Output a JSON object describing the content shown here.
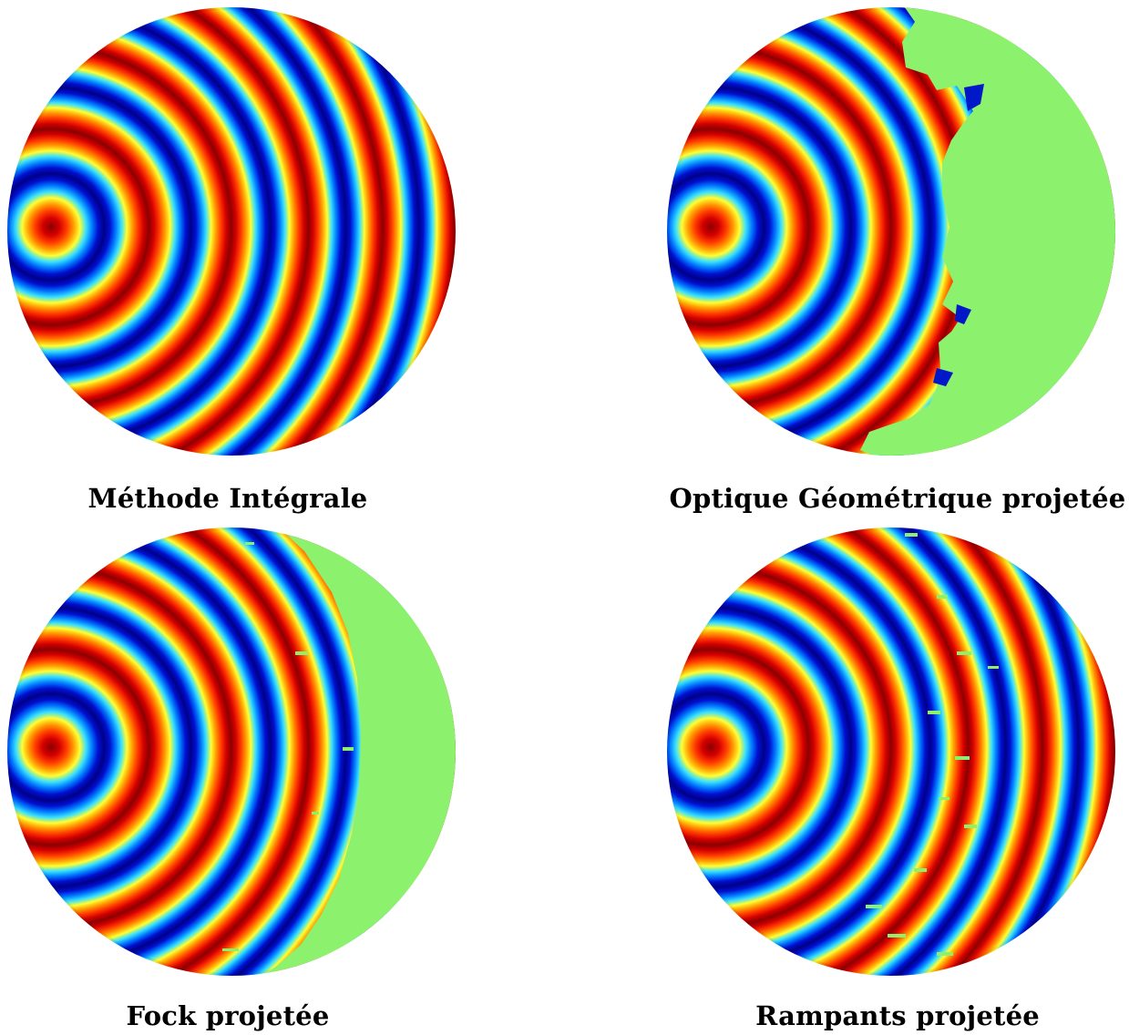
{
  "figure": {
    "panels": [
      {
        "id": "integral",
        "caption": "Méthode Intégrale",
        "green_cut": null,
        "noise": 0
      },
      {
        "id": "go",
        "caption": "Optique Géométrique projetée",
        "green_cut": "ragged",
        "noise": 0
      },
      {
        "id": "fock",
        "caption": "Fock projetée",
        "green_cut": "band",
        "noise": 1
      },
      {
        "id": "creeping",
        "caption": "Rampants projetée",
        "green_cut": null,
        "noise": 2
      }
    ],
    "colormap": "jet",
    "shadow_color": "#8cf26e"
  }
}
